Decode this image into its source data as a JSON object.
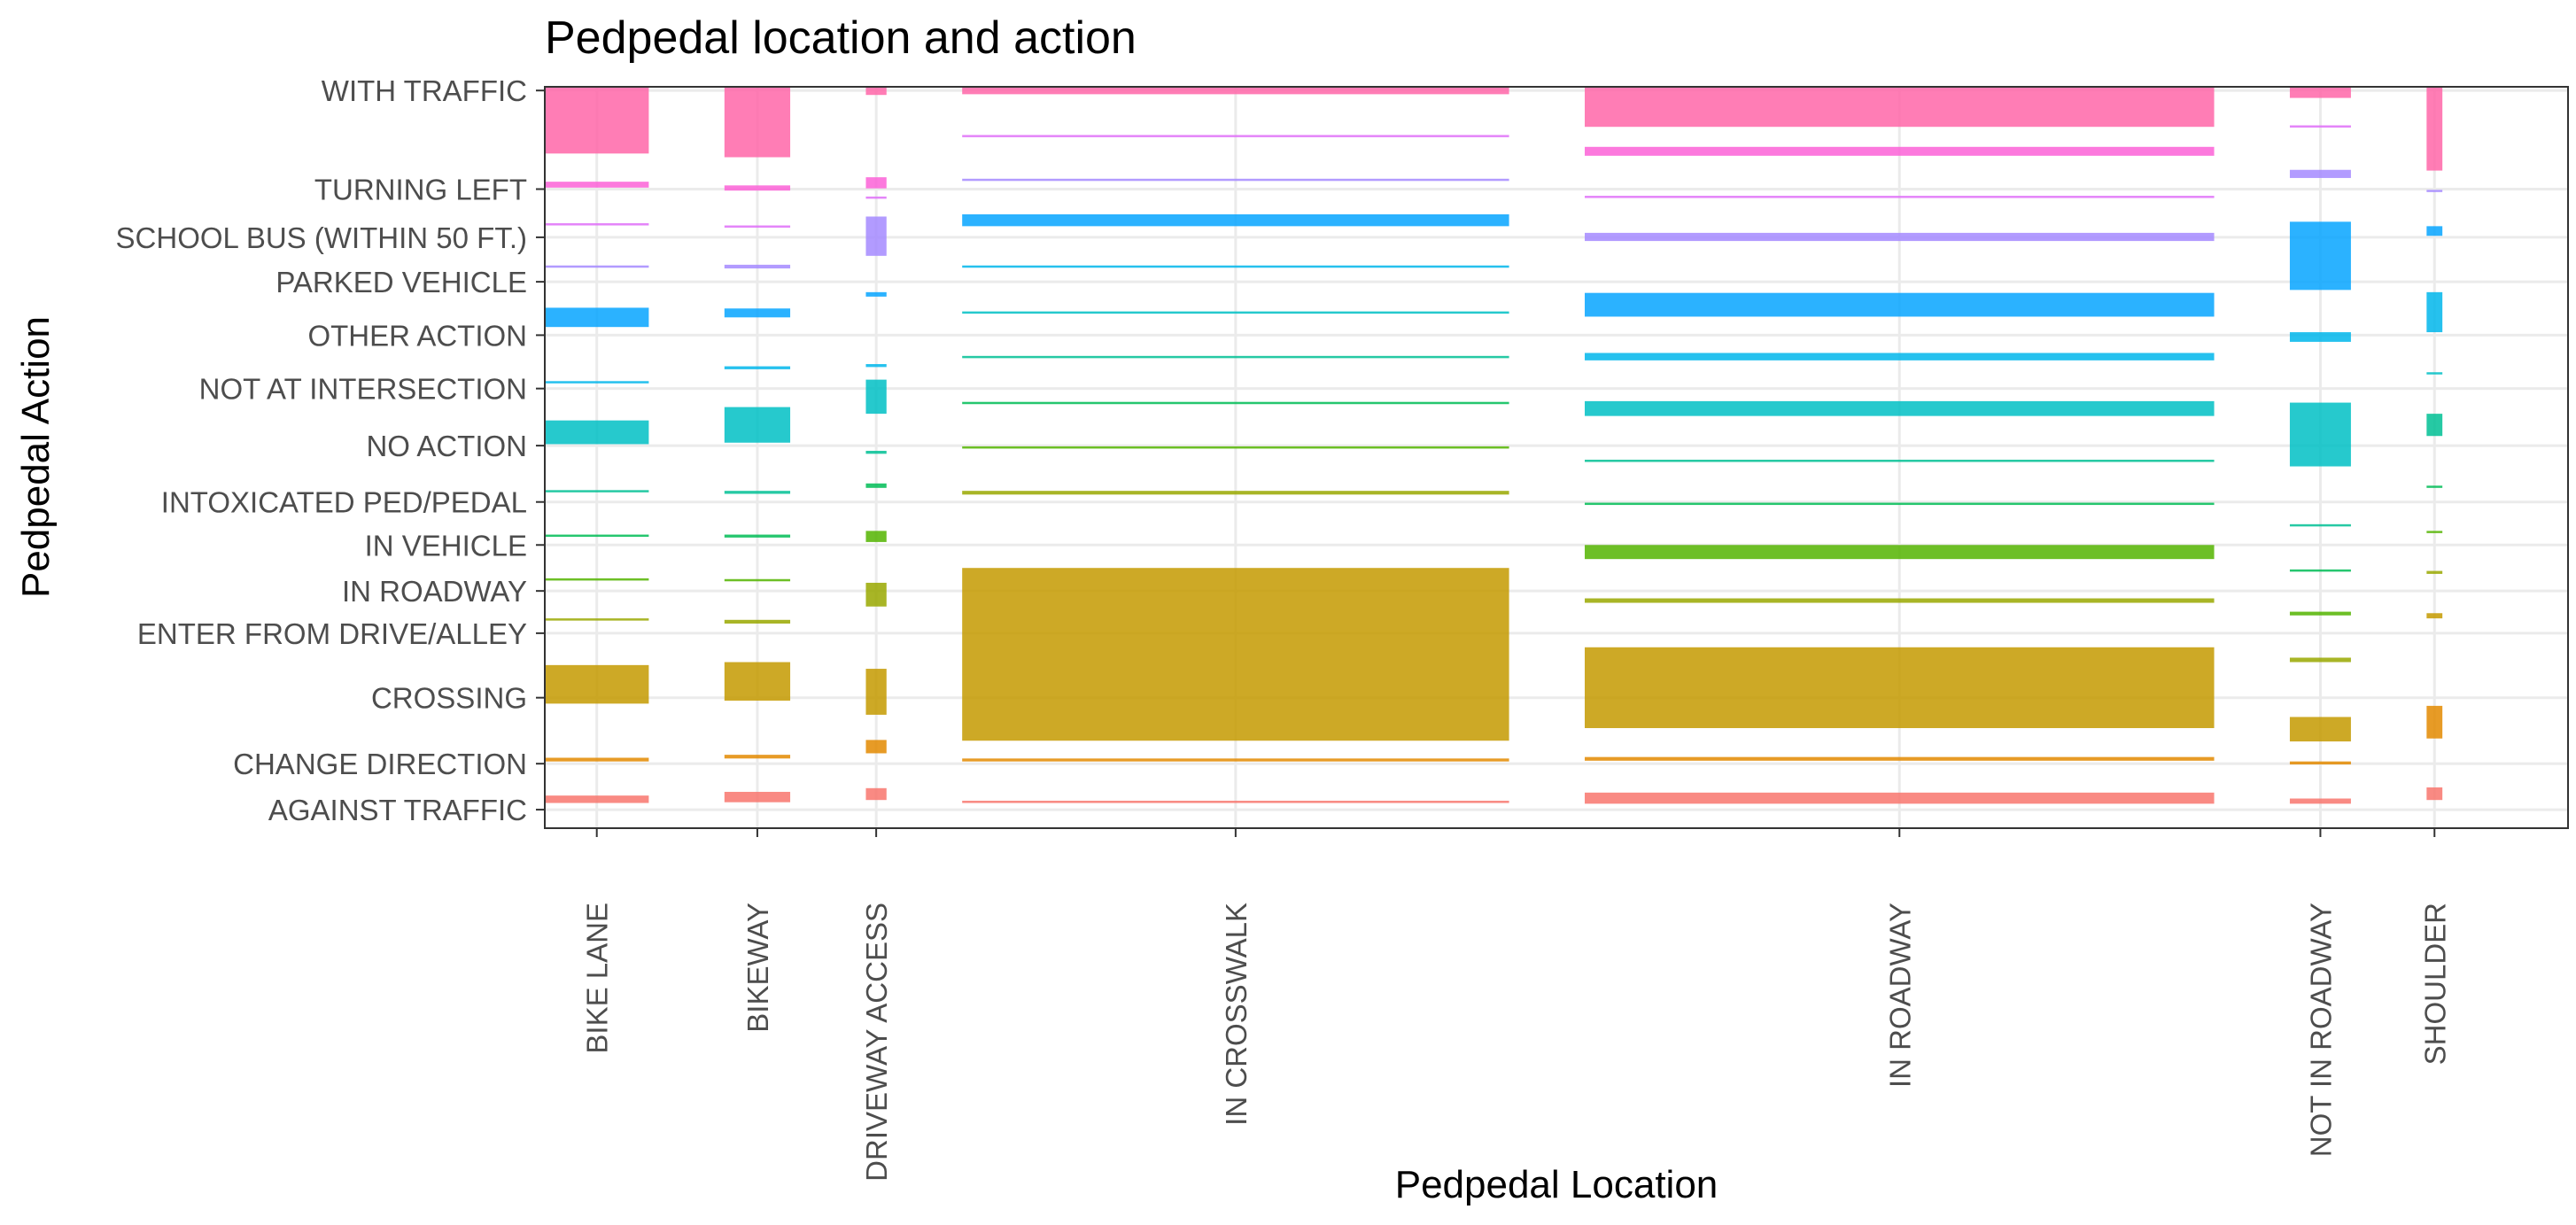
{
  "chart_data": {
    "type": "mosaic",
    "title": "Pedpedal location and action",
    "xlabel": "Pedpedal Location",
    "ylabel": "Pedpedal Action",
    "grid": true,
    "legend": "none",
    "x_categories": [
      "BIKE LANE",
      "BIKEWAY",
      "DRIVEWAY ACCESS",
      "IN CROSSWALK",
      "IN ROADWAY",
      "NOT IN ROADWAY",
      "SHOULDER"
    ],
    "x_shares": [
      0.0514,
      0.0325,
      0.0102,
      0.2703,
      0.3111,
      0.0302,
      0.0078
    ],
    "y_categories": [
      "AGAINST TRAFFIC",
      "CHANGE DIRECTION",
      "CROSSING",
      "ENTER FROM DRIVE/ALLEY",
      "IN ROADWAY",
      "IN VEHICLE",
      "INTOXICATED PED/PEDAL",
      "NO ACTION",
      "NOT AT INTERSECTION",
      "OTHER ACTION",
      "PARKED VEHICLE",
      "SCHOOL BUS (WITHIN 50 FT.)",
      "TURNING LEFT",
      "WITH TRAFFIC"
    ],
    "y_tick_labels": [
      "AGAINST TRAFFIC",
      "CHANGE DIRECTION",
      "CROSSING",
      "ENTER FROM DRIVE/ALLEY",
      "IN ROADWAY",
      "IN VEHICLE",
      "INTOXICATED PED/PEDAL",
      "NO ACTION",
      "NOT AT INTERSECTION",
      "OTHER ACTION",
      "PARKED VEHICLE",
      "SCHOOL BUS (WITHIN 50 FT.)",
      "TURNING LEFT",
      "WITH TRAFFIC"
    ],
    "y_tick_positions": [
      0.025,
      0.087,
      0.176,
      0.263,
      0.32,
      0.382,
      0.44,
      0.516,
      0.593,
      0.665,
      0.737,
      0.797,
      0.862,
      0.995
    ],
    "colors": [
      "#F8766D",
      "#E38900",
      "#C49A00",
      "#99A800",
      "#53B400",
      "#00BC56",
      "#00C094",
      "#00BFC4",
      "#00B6EB",
      "#06A4FF",
      "#A58AFF",
      "#DF70F8",
      "#FB61D7",
      "#FF66A8"
    ],
    "segments": [
      {
        "location": "BIKE LANE",
        "bands": [
          [
            0.034,
            0.044
          ],
          [
            0.09,
            0.095
          ],
          [
            0.168,
            0.22
          ],
          [
            0.28,
            0.283
          ],
          [
            0.334,
            0.337
          ],
          [
            0.393,
            0.396
          ],
          [
            0.453,
            0.456
          ],
          [
            0.518,
            0.55
          ],
          [
            0.6,
            0.603
          ],
          [
            0.676,
            0.702
          ],
          [
            0.756,
            0.759
          ],
          [
            0.813,
            0.816
          ],
          [
            0.864,
            0.872
          ],
          [
            0.91,
            1.0
          ]
        ]
      },
      {
        "location": "BIKEWAY",
        "bands": [
          [
            0.035,
            0.049
          ],
          [
            0.094,
            0.099
          ],
          [
            0.172,
            0.224
          ],
          [
            0.276,
            0.281
          ],
          [
            0.333,
            0.336
          ],
          [
            0.392,
            0.396
          ],
          [
            0.451,
            0.455
          ],
          [
            0.52,
            0.568
          ],
          [
            0.619,
            0.623
          ],
          [
            0.689,
            0.701
          ],
          [
            0.755,
            0.76
          ],
          [
            0.81,
            0.813
          ],
          [
            0.86,
            0.867
          ],
          [
            0.905,
            1.0
          ]
        ]
      },
      {
        "location": "DRIVEWAY ACCESS",
        "bands": [
          [
            0.038,
            0.054
          ],
          [
            0.101,
            0.119
          ],
          [
            0.153,
            0.215
          ],
          [
            0.299,
            0.331
          ],
          [
            0.386,
            0.401
          ],
          [
            0.459,
            0.465
          ],
          [
            0.505,
            0.509
          ],
          [
            0.559,
            0.605
          ],
          [
            0.622,
            0.626
          ],
          [
            0.717,
            0.723
          ],
          [
            0.772,
            0.825
          ],
          [
            0.849,
            0.852
          ],
          [
            0.863,
            0.878
          ],
          [
            0.989,
            1.0
          ]
        ]
      },
      {
        "location": "IN CROSSWALK",
        "bands": [
          [
            0.034,
            0.037
          ],
          [
            0.09,
            0.094
          ],
          [
            0.118,
            0.351
          ],
          [
            0.45,
            0.455
          ],
          [
            0.512,
            0.515
          ],
          [
            0.572,
            0.575
          ],
          [
            0.634,
            0.637
          ],
          [
            0.694,
            0.697
          ],
          [
            0.756,
            0.759
          ],
          [
            0.812,
            0.828
          ],
          [
            0.873,
            0.876
          ],
          [
            0.932,
            0.935
          ],
          [
            0.99,
            1.0
          ]
        ]
      },
      {
        "location": "IN ROADWAY",
        "bands": [
          [
            0.033,
            0.048
          ],
          [
            0.091,
            0.096
          ],
          [
            0.135,
            0.244
          ],
          [
            0.304,
            0.31
          ],
          [
            0.363,
            0.382
          ],
          [
            0.436,
            0.439
          ],
          [
            0.494,
            0.497
          ],
          [
            0.556,
            0.576
          ],
          [
            0.631,
            0.641
          ],
          [
            0.69,
            0.722
          ],
          [
            0.792,
            0.803
          ],
          [
            0.85,
            0.853
          ],
          [
            0.907,
            0.919
          ],
          [
            0.946,
            1.0
          ]
        ]
      },
      {
        "location": "NOT IN ROADWAY",
        "bands": [
          [
            0.033,
            0.04
          ],
          [
            0.086,
            0.09
          ],
          [
            0.117,
            0.15
          ],
          [
            0.224,
            0.23
          ],
          [
            0.287,
            0.292
          ],
          [
            0.346,
            0.349
          ],
          [
            0.407,
            0.41
          ],
          [
            0.488,
            0.574
          ],
          [
            0.656,
            0.669
          ],
          [
            0.726,
            0.818
          ],
          [
            0.877,
            0.888
          ],
          [
            0.945,
            0.948
          ],
          [
            0.985,
            1.0
          ]
        ]
      },
      {
        "location": "SHOULDER",
        "bands": [
          [
            0.038,
            0.055
          ],
          [
            0.121,
            0.165
          ],
          [
            0.283,
            0.29
          ],
          [
            0.343,
            0.347
          ],
          [
            0.398,
            0.401
          ],
          [
            0.459,
            0.462
          ],
          [
            0.529,
            0.559
          ],
          [
            0.612,
            0.615
          ],
          [
            0.669,
            0.723
          ],
          [
            0.799,
            0.812
          ],
          [
            0.858,
            0.861
          ],
          [
            0.887,
            1.0
          ]
        ]
      }
    ]
  }
}
